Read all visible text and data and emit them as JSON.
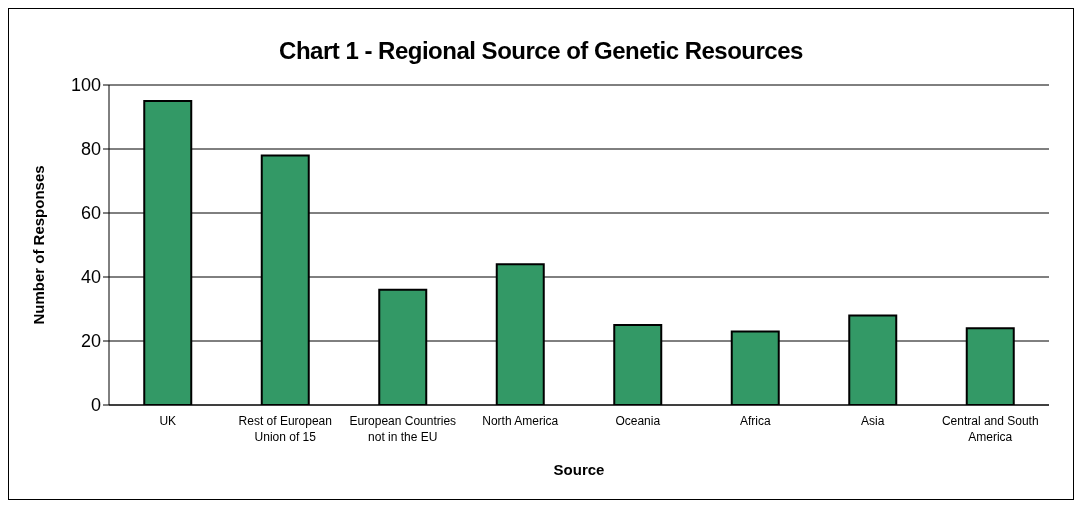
{
  "chart_data": {
    "type": "bar",
    "title": "Chart 1 - Regional Source of Genetic Resources",
    "xlabel": "Source",
    "ylabel": "Number of Responses",
    "categories": [
      "UK",
      "Rest of European Union of 15",
      "European Countries not in the EU",
      "North America",
      "Oceania",
      "Africa",
      "Asia",
      "Central and South America"
    ],
    "values": [
      95,
      78,
      36,
      44,
      25,
      23,
      28,
      24
    ],
    "color": "#339966",
    "ylim": [
      0,
      100
    ],
    "yticks": [
      0,
      20,
      40,
      60,
      80,
      100
    ],
    "grid": "y"
  }
}
